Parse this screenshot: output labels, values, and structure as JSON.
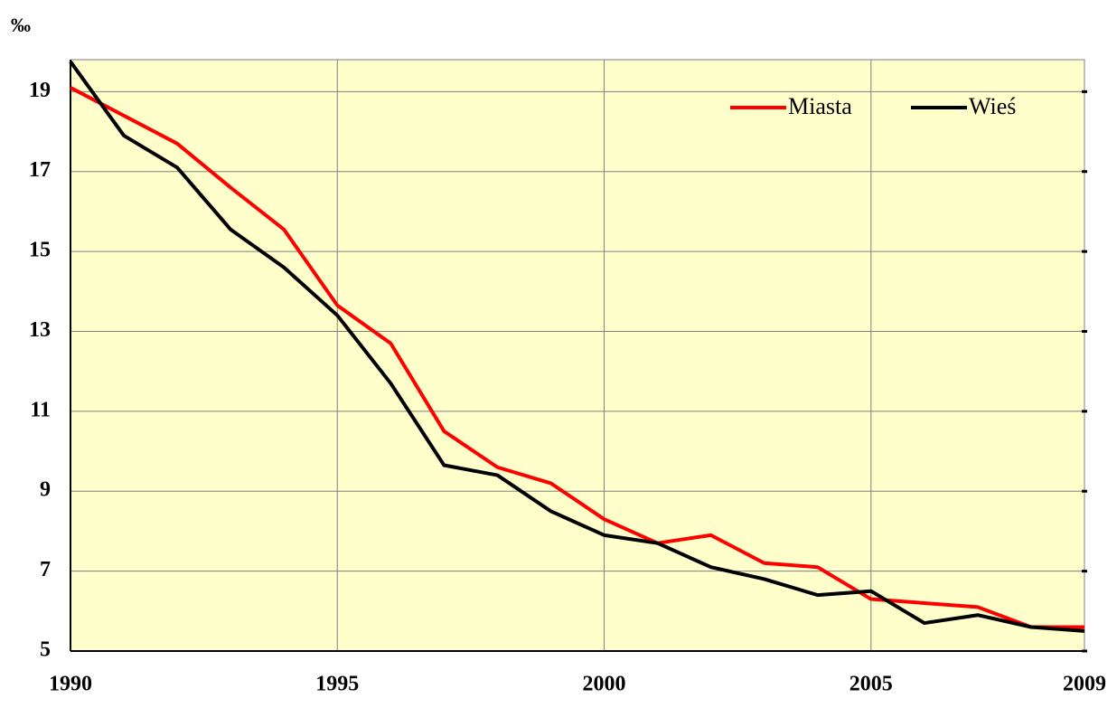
{
  "chart_data": {
    "type": "line",
    "y_label": "‰",
    "x": [
      1990,
      1991,
      1992,
      1993,
      1994,
      1995,
      1996,
      1997,
      1998,
      1999,
      2000,
      2001,
      2002,
      2003,
      2004,
      2005,
      2006,
      2007,
      2008,
      2009
    ],
    "series": [
      {
        "name": "Miasta",
        "color": "#ff0000",
        "values": [
          19.1,
          18.4,
          17.7,
          16.6,
          15.55,
          13.65,
          12.7,
          10.5,
          9.6,
          9.2,
          8.3,
          7.7,
          7.9,
          7.2,
          7.1,
          6.3,
          6.2,
          6.1,
          5.6,
          5.6
        ]
      },
      {
        "name": "Wieś",
        "color": "#000000",
        "values": [
          19.75,
          17.9,
          17.1,
          15.55,
          14.6,
          13.4,
          11.7,
          9.65,
          9.4,
          8.5,
          7.9,
          7.7,
          7.1,
          6.8,
          6.4,
          6.5,
          5.7,
          5.9,
          5.6,
          5.5
        ]
      }
    ],
    "xlim": [
      1990,
      2009
    ],
    "xticks": [
      1990,
      1995,
      2000,
      2005,
      2009
    ],
    "ylim": [
      5,
      19.8
    ],
    "yticks": [
      5,
      7,
      9,
      11,
      13,
      15,
      17,
      19
    ],
    "grid": true,
    "legend": "upper right",
    "background": "#ffffcc"
  }
}
